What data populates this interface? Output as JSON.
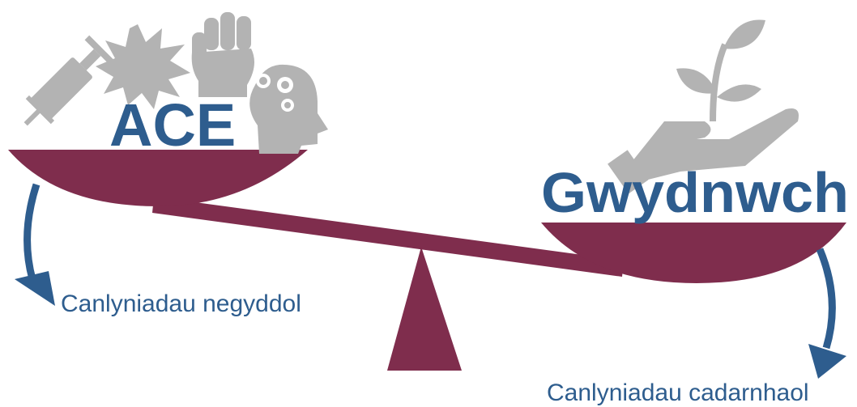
{
  "left": {
    "label": "ACE",
    "outcome": "Canlyniadau negyddol"
  },
  "right": {
    "label": "Gwydnwch",
    "outcome": "Canlyniadau cadarnhaol"
  }
}
